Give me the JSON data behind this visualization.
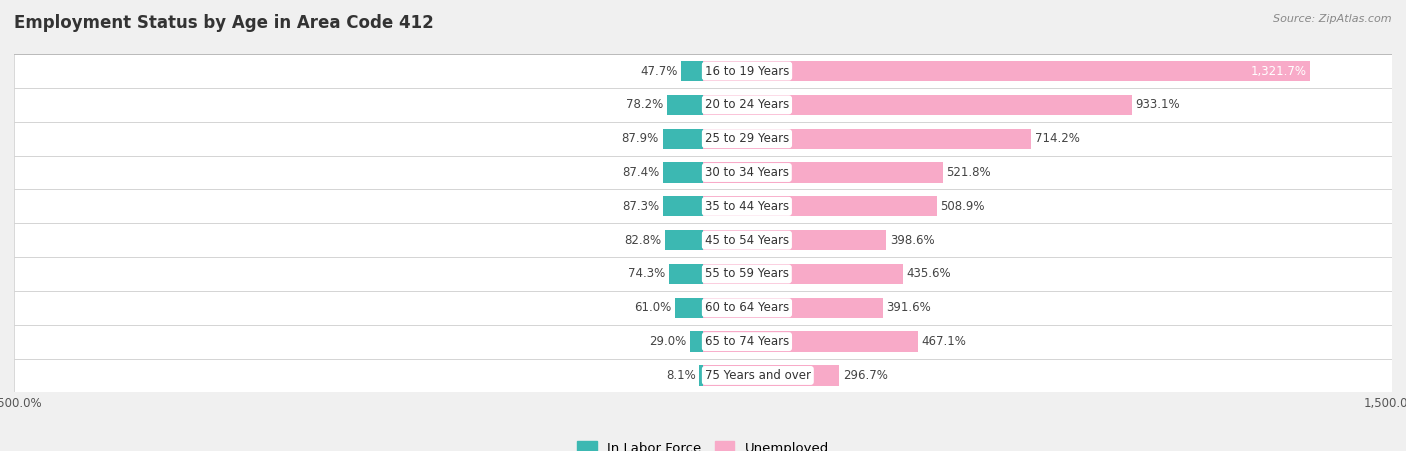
{
  "title": "Employment Status by Age in Area Code 412",
  "source": "Source: ZipAtlas.com",
  "categories": [
    "16 to 19 Years",
    "20 to 24 Years",
    "25 to 29 Years",
    "30 to 34 Years",
    "35 to 44 Years",
    "45 to 54 Years",
    "55 to 59 Years",
    "60 to 64 Years",
    "65 to 74 Years",
    "75 Years and over"
  ],
  "in_labor_force": [
    47.7,
    78.2,
    87.9,
    87.4,
    87.3,
    82.8,
    74.3,
    61.0,
    29.0,
    8.1
  ],
  "unemployed": [
    1321.7,
    933.1,
    714.2,
    521.8,
    508.9,
    398.6,
    435.6,
    391.6,
    467.1,
    296.7
  ],
  "labor_color": "#3cb8b2",
  "unemployed_color": "#f8aac8",
  "axis_range": [
    -1500,
    1500
  ],
  "background_color": "#f0f0f0",
  "row_bg_color": "#ffffff",
  "row_alt_color": "#ebebeb",
  "bar_height": 0.6,
  "legend_labor": "In Labor Force",
  "legend_unemployed": "Unemployed",
  "label_fontsize": 8.5,
  "title_fontsize": 12
}
